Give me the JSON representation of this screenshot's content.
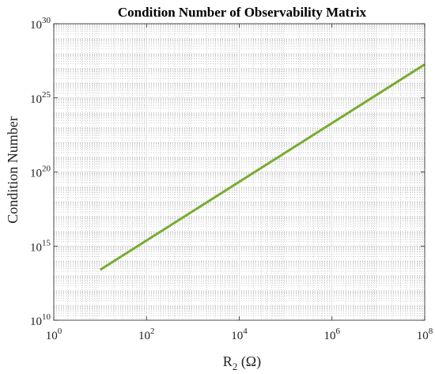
{
  "chart_data": {
    "type": "line",
    "title": "Condition Number of Observability Matrix",
    "xlabel": {
      "main": "R",
      "sub": "2",
      "unit": " (Ω)"
    },
    "ylabel": "Condition Number",
    "x_scale": "log",
    "y_scale": "log",
    "xlim": [
      1,
      100000000
    ],
    "ylim": [
      10000000000.0,
      1e+30
    ],
    "x_ticks": [
      {
        "base": "10",
        "exp": "0",
        "value": 1
      },
      {
        "base": "10",
        "exp": "2",
        "value": 100
      },
      {
        "base": "10",
        "exp": "4",
        "value": 10000
      },
      {
        "base": "10",
        "exp": "6",
        "value": 1000000
      },
      {
        "base": "10",
        "exp": "8",
        "value": 100000000
      }
    ],
    "y_ticks": [
      {
        "base": "10",
        "exp": "10",
        "value": 10000000000.0
      },
      {
        "base": "10",
        "exp": "15",
        "value": 1000000000000000.0
      },
      {
        "base": "10",
        "exp": "20",
        "value": 1e+20
      },
      {
        "base": "10",
        "exp": "25",
        "value": 1e+25
      },
      {
        "base": "10",
        "exp": "30",
        "value": 1e+30
      }
    ],
    "grid": true,
    "minor_grid": true,
    "series": [
      {
        "color": "#77ac30",
        "x": [
          10,
          100000000
        ],
        "y": [
          25000000000000.0,
          1.8e+27
        ]
      }
    ]
  }
}
